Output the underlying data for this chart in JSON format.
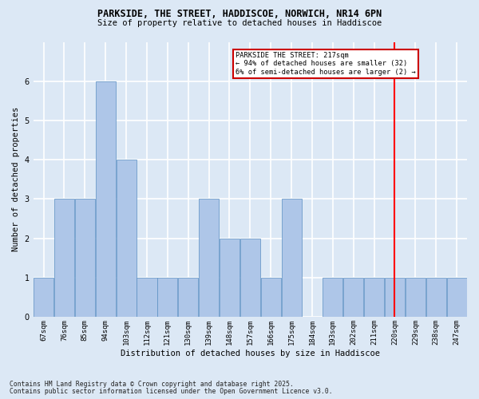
{
  "title_line1": "PARKSIDE, THE STREET, HADDISCOE, NORWICH, NR14 6PN",
  "title_line2": "Size of property relative to detached houses in Haddiscoe",
  "xlabel": "Distribution of detached houses by size in Haddiscoe",
  "ylabel": "Number of detached properties",
  "categories": [
    "67sqm",
    "76sqm",
    "85sqm",
    "94sqm",
    "103sqm",
    "112sqm",
    "121sqm",
    "130sqm",
    "139sqm",
    "148sqm",
    "157sqm",
    "166sqm",
    "175sqm",
    "184sqm",
    "193sqm",
    "202sqm",
    "211sqm",
    "220sqm",
    "229sqm",
    "238sqm",
    "247sqm"
  ],
  "values": [
    1,
    3,
    3,
    6,
    4,
    1,
    1,
    1,
    3,
    2,
    2,
    1,
    3,
    0,
    1,
    1,
    1,
    1,
    1,
    1,
    1
  ],
  "bar_color": "#aec6e8",
  "bar_edge_color": "#5a8fc2",
  "background_color": "#dce8f5",
  "grid_color": "#ffffff",
  "red_line_x": 17.0,
  "annotation_text": "PARKSIDE THE STREET: 217sqm\n← 94% of detached houses are smaller (32)\n6% of semi-detached houses are larger (2) →",
  "annotation_box_color": "#ffffff",
  "annotation_box_edge": "#cc0000",
  "footer_line1": "Contains HM Land Registry data © Crown copyright and database right 2025.",
  "footer_line2": "Contains public sector information licensed under the Open Government Licence v3.0.",
  "ylim": [
    0,
    7
  ],
  "yticks": [
    0,
    1,
    2,
    3,
    4,
    5,
    6,
    7
  ]
}
